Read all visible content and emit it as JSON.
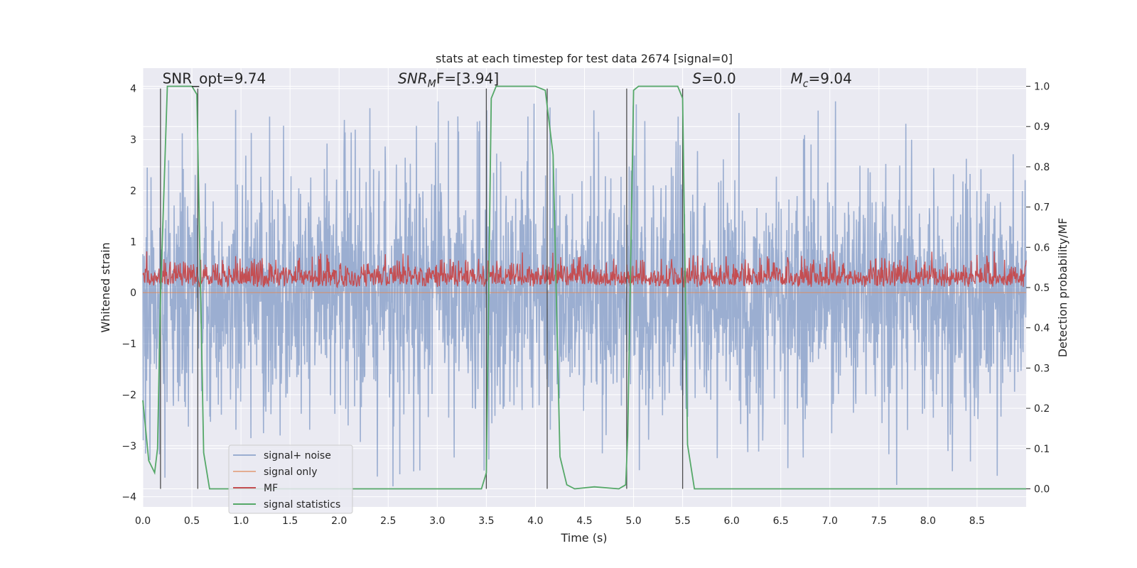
{
  "chart_data": {
    "type": "line",
    "title": "stats at each timestep for test data 2674 [signal=0]",
    "xlabel": "Time (s)",
    "ylabel": "Whitened strain",
    "y2label": "Detection probability/MF",
    "xlim": [
      0.0,
      9.0
    ],
    "ylim": [
      -4.2,
      4.4
    ],
    "y2lim": [
      -0.045,
      1.045
    ],
    "xticks": [
      0.0,
      0.5,
      1.0,
      1.5,
      2.0,
      2.5,
      3.0,
      3.5,
      4.0,
      4.5,
      5.0,
      5.5,
      6.0,
      6.5,
      7.0,
      7.5,
      8.0,
      8.5
    ],
    "xtick_labels": [
      "0.0",
      "0.5",
      "1.0",
      "1.5",
      "2.0",
      "2.5",
      "3.0",
      "3.5",
      "4.0",
      "4.5",
      "5.0",
      "5.5",
      "6.0",
      "6.5",
      "7.0",
      "7.5",
      "8.0",
      "8.5"
    ],
    "yticks": [
      4,
      3,
      2,
      1,
      0,
      -1,
      -2,
      -3,
      -4
    ],
    "ytick_labels": [
      "4",
      "3",
      "2",
      "1",
      "0",
      "−1",
      "−2",
      "−3",
      "−4"
    ],
    "y2ticks": [
      1.0,
      0.9,
      0.8,
      0.7,
      0.6,
      0.5,
      0.4,
      0.3,
      0.2,
      0.1,
      0.0
    ],
    "y2tick_labels": [
      "1.0",
      "0.9",
      "0.8",
      "0.7",
      "0.6",
      "0.5",
      "0.4",
      "0.3",
      "0.2",
      "0.1",
      "0.0"
    ],
    "annotations": [
      {
        "base": "SNR_opt=9.74",
        "sub": "",
        "tail": "",
        "x": 0.2,
        "y": 4.1,
        "italic": false
      },
      {
        "base": "SNR",
        "sub": "M",
        "tail": "F=[3.94]",
        "x": 2.6,
        "y": 4.1,
        "italic": true
      },
      {
        "base": "S",
        "sub": "",
        "tail": "=0.0",
        "x": 5.6,
        "y": 4.1,
        "italic": true
      },
      {
        "base": "M",
        "sub": "c",
        "tail": "=9.04",
        "x": 6.6,
        "y": 4.1,
        "italic": true
      }
    ],
    "vlines": [
      0.18,
      0.56,
      3.5,
      4.12,
      4.93,
      5.5
    ],
    "detection_threshold": 0.0,
    "series": [
      {
        "name": "signal+ noise",
        "color": "#4c72b0",
        "alpha": 0.5,
        "kind": "noise",
        "amplitude_sigma": 1.15,
        "spike_range": [
          2.2,
          3.8
        ],
        "axis": "left"
      },
      {
        "name": "signal only",
        "color": "#dd8452",
        "alpha": 0.6,
        "kind": "flat",
        "value": 0.0,
        "axis": "left"
      },
      {
        "name": "MF",
        "color": "#c44e52",
        "kind": "mf",
        "axis": "right",
        "baseline": 0.5,
        "range": [
          0.5,
          0.59
        ]
      },
      {
        "name": "signal statistics",
        "color": "#55a868",
        "kind": "steps",
        "axis": "right",
        "x": [
          0.0,
          0.06,
          0.12,
          0.15,
          0.18,
          0.25,
          0.5,
          0.55,
          0.62,
          0.68,
          3.45,
          3.5,
          3.55,
          3.6,
          4.0,
          4.1,
          4.18,
          4.25,
          4.32,
          4.4,
          4.6,
          4.85,
          4.92,
          4.94,
          5.0,
          5.05,
          5.2,
          5.45,
          5.5,
          5.55,
          5.62,
          5.8,
          9.0
        ],
        "y": [
          0.22,
          0.07,
          0.04,
          0.1,
          0.48,
          1.0,
          1.0,
          0.98,
          0.09,
          0.0,
          0.0,
          0.04,
          0.97,
          1.0,
          1.0,
          0.99,
          0.83,
          0.08,
          0.01,
          0.0,
          0.005,
          0.0,
          0.01,
          0.13,
          0.99,
          1.0,
          1.0,
          1.0,
          0.97,
          0.11,
          0.0,
          0.0,
          0.0
        ]
      }
    ]
  }
}
